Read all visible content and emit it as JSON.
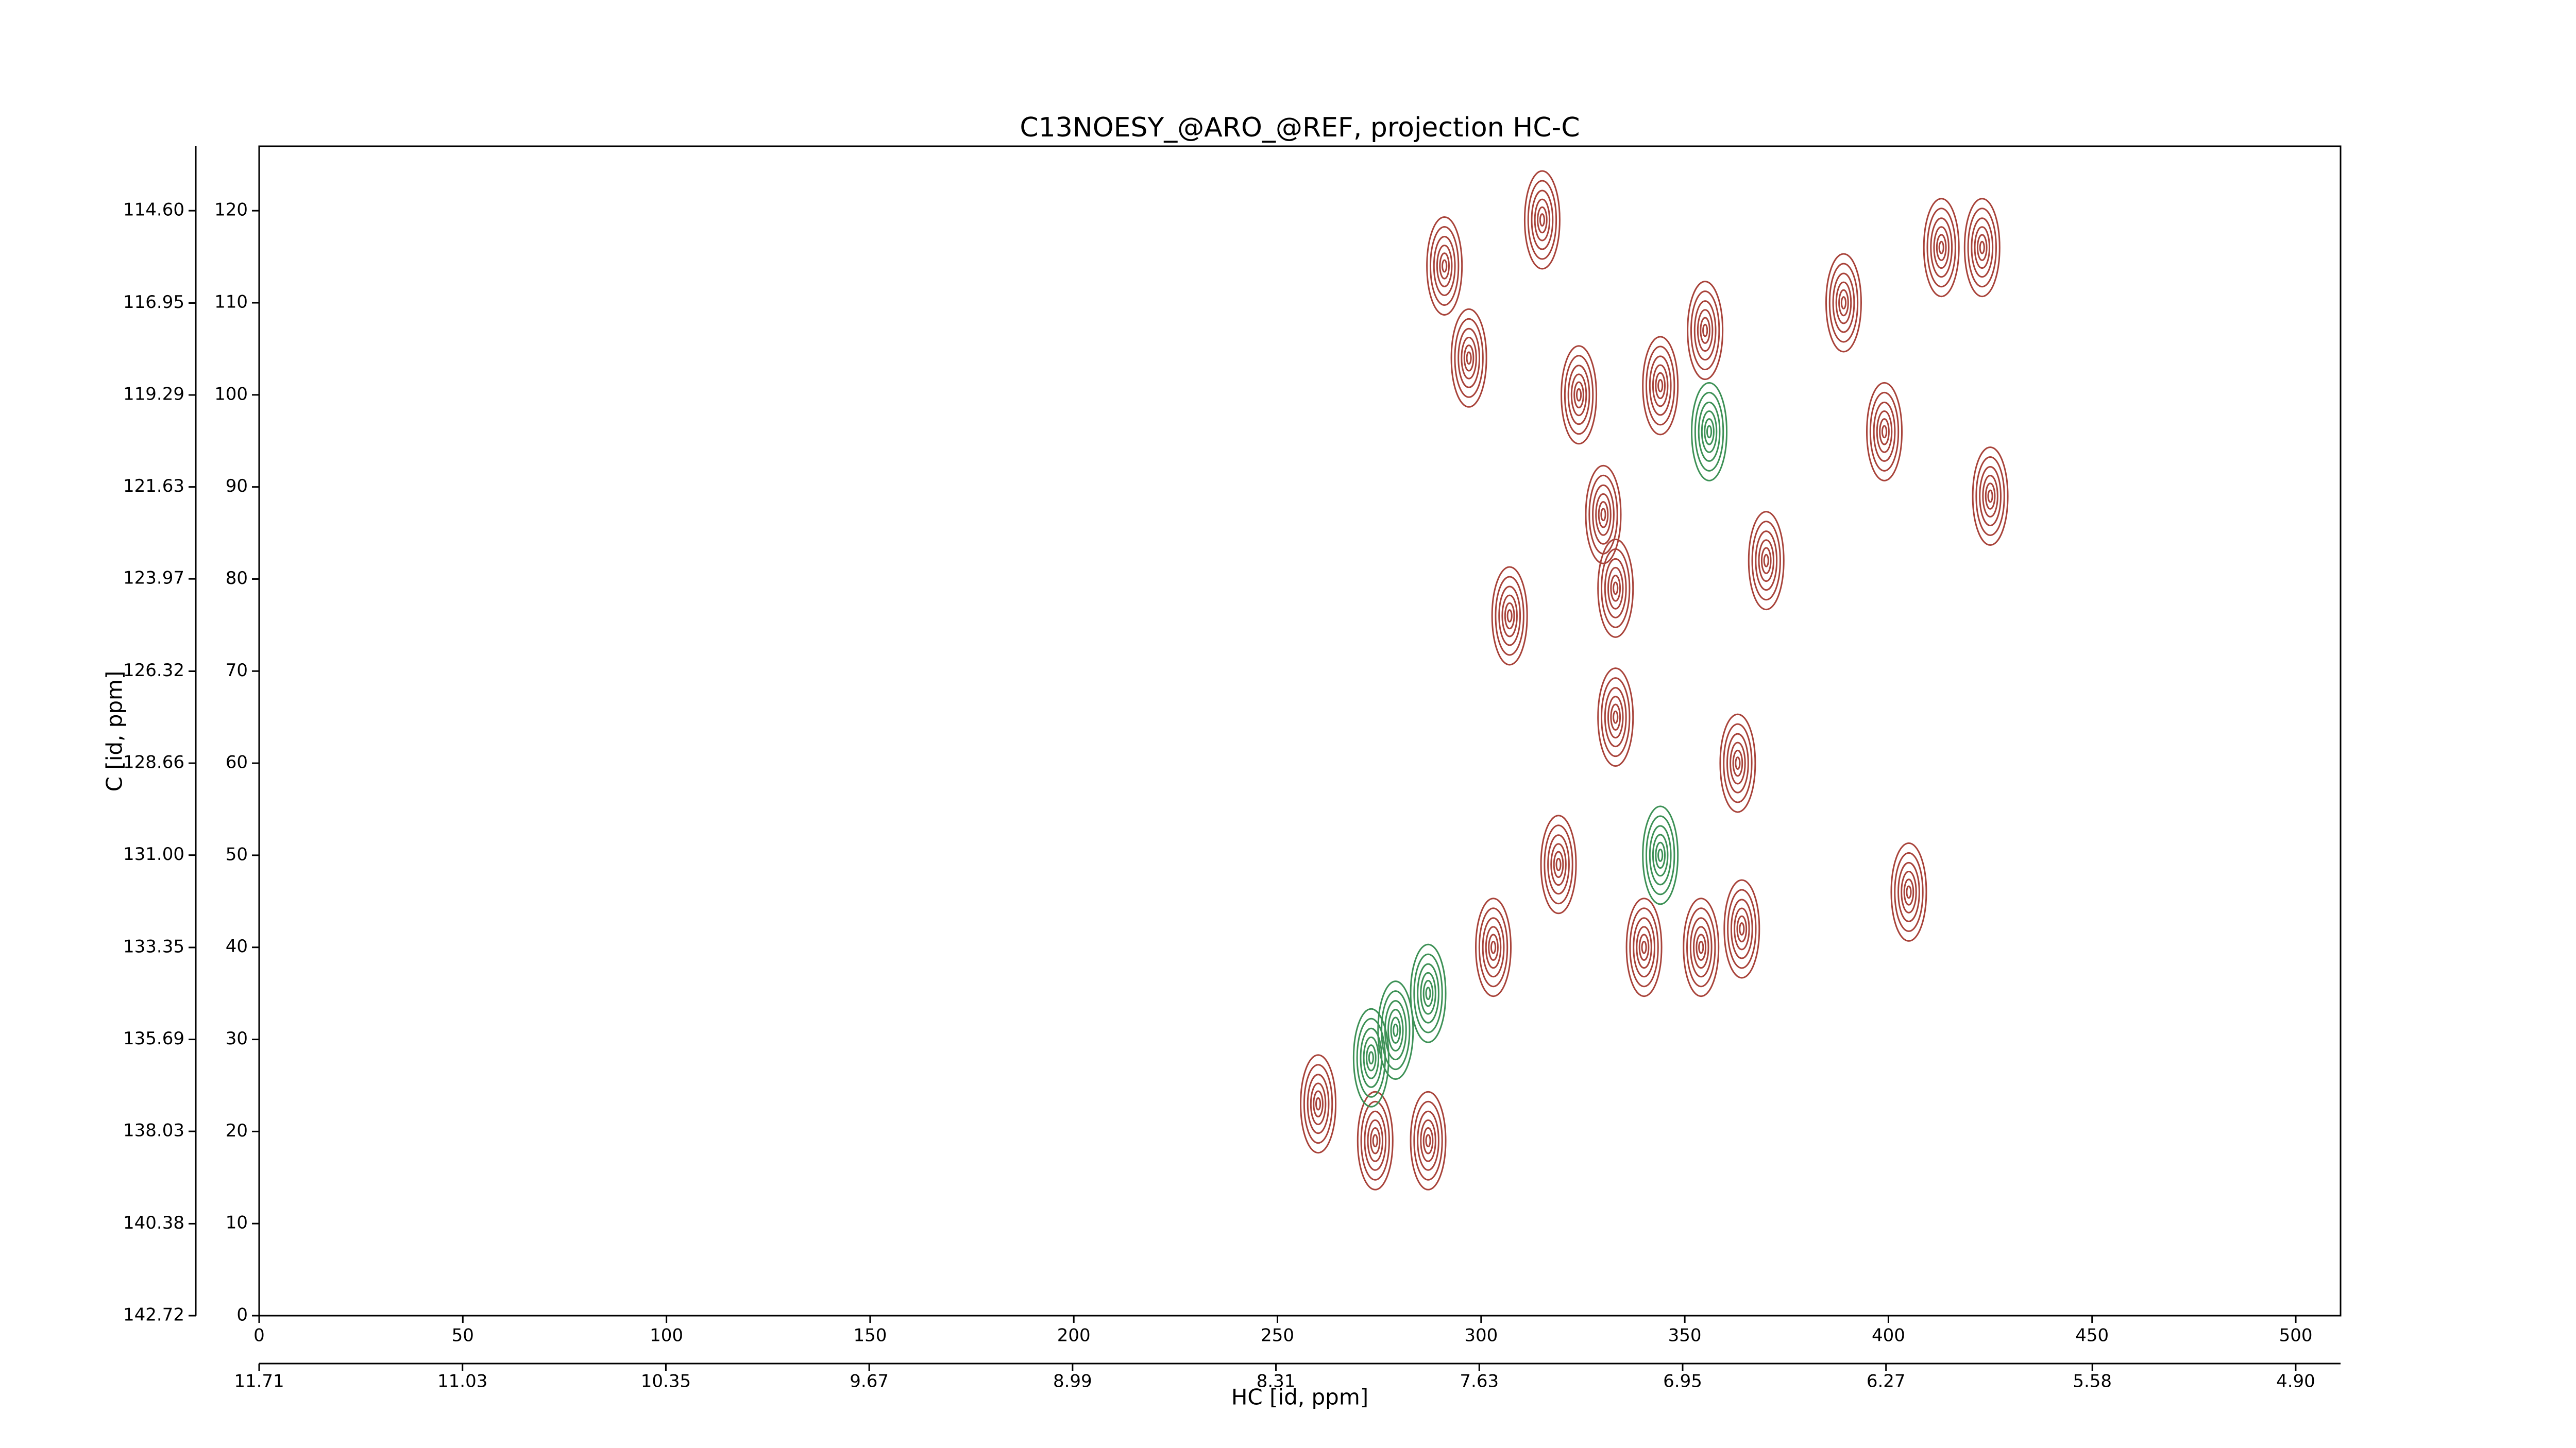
{
  "chart_data": {
    "type": "contour",
    "title": "C13NOESY_@ARO_@REF, projection HC-C",
    "x_label": "HC [id, ppm]",
    "y_label": "C [id, ppm]",
    "xlim": [
      0,
      511
    ],
    "xticks": [
      0,
      50,
      100,
      150,
      200,
      250,
      300,
      350,
      400,
      450,
      500
    ],
    "x2lim": [
      11.71,
      4.75
    ],
    "x2ticks": [
      11.71,
      11.03,
      10.35,
      9.67,
      8.99,
      8.31,
      7.63,
      6.95,
      6.27,
      5.58,
      {
        "value": 4.9,
        "label": "4.90"
      }
    ],
    "ylim": [
      0,
      127
    ],
    "yticks": [
      0,
      10,
      20,
      30,
      40,
      50,
      60,
      70,
      80,
      90,
      100,
      110,
      120
    ],
    "y2lim": [
      142.72,
      112.96
    ],
    "y2ticks": [
      {
        "value": 142.72,
        "label": "142.72"
      },
      140.38,
      138.03,
      135.69,
      133.35,
      {
        "value": 131,
        "label": "131.00"
      },
      128.66,
      126.32,
      123.97,
      121.63,
      119.29,
      116.95,
      {
        "value": 114.6,
        "label": "114.60"
      }
    ],
    "series": [
      {
        "color": "#a8433a",
        "x": [
          297,
          324,
          307,
          330,
          333,
          333,
          344,
          355,
          370,
          363,
          389,
          413,
          423,
          399,
          425,
          405,
          303,
          319,
          340,
          364,
          354,
          260,
          274,
          287,
          315,
          291
        ],
        "y": [
          104,
          100,
          76,
          87,
          79,
          65,
          101,
          107,
          82,
          60,
          110,
          116,
          116,
          96,
          89,
          46,
          40,
          49,
          40,
          42,
          40,
          23,
          19,
          19,
          119,
          114
        ]
      },
      {
        "color": "#3d9156",
        "x": [
          287,
          279,
          273,
          344,
          356
        ],
        "y": [
          35,
          31,
          28,
          50,
          96
        ]
      }
    ]
  }
}
